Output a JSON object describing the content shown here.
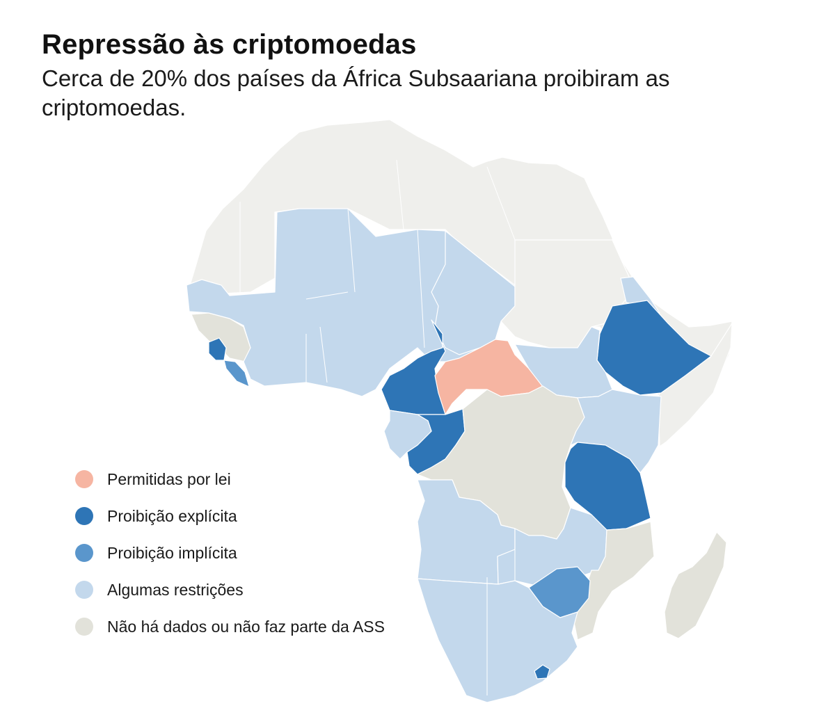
{
  "title": "Repressão às criptomoedas",
  "subtitle": "Cerca de 20% dos países da África Subsaariana proibiram as criptomoedas.",
  "colors": {
    "allowed": "#f6b5a2",
    "explicit_ban": "#2e75b6",
    "implicit_ban": "#5a96cc",
    "some_restrictions": "#c3d8ec",
    "no_data": "#e2e2da",
    "north_africa": "#efefec",
    "border": "#ffffff"
  },
  "legend": [
    {
      "key": "allowed",
      "label": "Permitidas por lei",
      "color": "#f6b5a2"
    },
    {
      "key": "explicit_ban",
      "label": "Proibição explícita",
      "color": "#2e75b6"
    },
    {
      "key": "implicit_ban",
      "label": "Proibição implícita",
      "color": "#5a96cc"
    },
    {
      "key": "some_restrictions",
      "label": "Algumas restrições",
      "color": "#c3d8ec"
    },
    {
      "key": "no_data",
      "label": "Não há dados ou não faz parte da ASS",
      "color": "#e2e2da"
    }
  ]
}
